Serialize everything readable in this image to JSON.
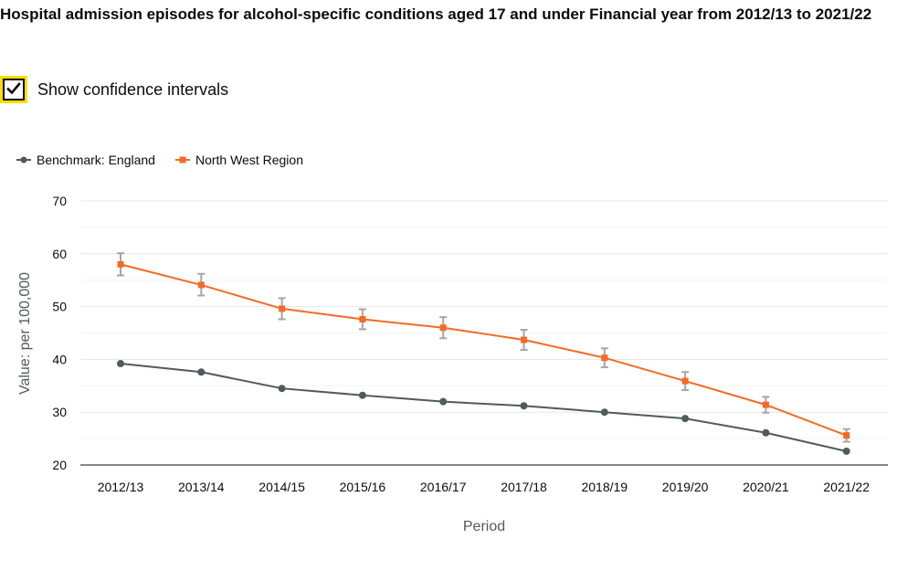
{
  "page": {
    "title": "Hospital admission episodes for alcohol-specific conditions aged 17 and under Financial year from 2012/13 to 2021/22"
  },
  "confidence_toggle": {
    "label": "Show confidence intervals",
    "checked": true,
    "check_icon": "checkmark-icon",
    "focus_color": "#ffdd00"
  },
  "chart_data": {
    "type": "line",
    "title": "Hospital admission episodes for alcohol-specific conditions aged 17 and under Financial year from 2012/13 to 2021/22",
    "xlabel": "Period",
    "ylabel": "Value: per 100,000",
    "ylim": [
      20,
      70
    ],
    "yticks": [
      20,
      30,
      40,
      50,
      60,
      70
    ],
    "grid": true,
    "legend_position": "top-left",
    "categories": [
      "2012/13",
      "2013/14",
      "2014/15",
      "2015/16",
      "2016/17",
      "2017/18",
      "2018/19",
      "2019/20",
      "2020/21",
      "2021/22"
    ],
    "series": [
      {
        "name": "Benchmark: England",
        "color": "#505a5f",
        "marker": "circle",
        "values": [
          39.2,
          37.6,
          34.5,
          33.2,
          32.0,
          31.2,
          30.0,
          28.8,
          26.1,
          22.6
        ]
      },
      {
        "name": "North West Region",
        "color": "#f46a25",
        "marker": "square",
        "values": [
          58.0,
          54.1,
          49.6,
          47.6,
          46.0,
          43.7,
          40.3,
          35.9,
          31.4,
          25.6
        ],
        "ci_lower": [
          55.9,
          52.1,
          47.6,
          45.7,
          44.0,
          41.8,
          38.5,
          34.2,
          29.9,
          24.4
        ],
        "ci_upper": [
          60.1,
          56.2,
          51.6,
          49.5,
          48.0,
          45.6,
          42.1,
          37.6,
          32.9,
          26.8
        ],
        "ci_color": "#a6a6a6"
      }
    ]
  }
}
